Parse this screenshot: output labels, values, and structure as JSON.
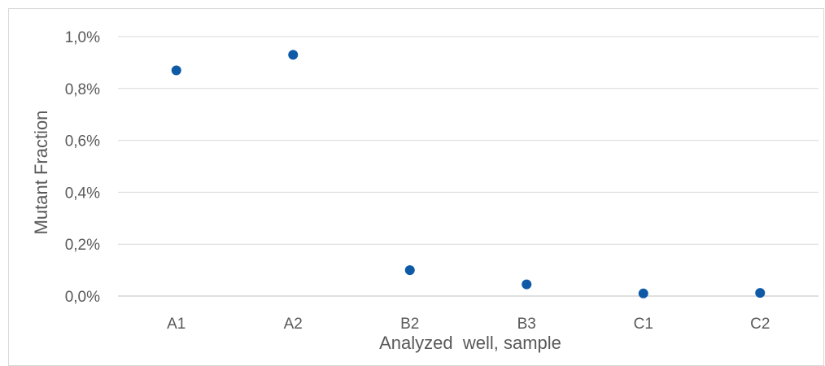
{
  "chart_data": {
    "type": "scatter",
    "categories": [
      "A1",
      "A2",
      "B2",
      "B3",
      "C1",
      "C2"
    ],
    "values": [
      0.0087,
      0.0093,
      0.001,
      0.00045,
      0.0001,
      0.00012
    ],
    "xlabel": "Analyzed  well, sample",
    "ylabel": "Mutant Fraction",
    "ylim": [
      0,
      0.01
    ],
    "yticks": [
      0,
      0.002,
      0.004,
      0.006,
      0.008,
      0.01
    ],
    "ytick_labels": [
      "0,0%",
      "0,2%",
      "0,4%",
      "0,6%",
      "0,8%",
      "1,0%"
    ],
    "grid": true,
    "legend": "none",
    "marker_color": "#0e5aa7",
    "grid_color": "#d9d9d9",
    "axis_color": "#bfbfbf",
    "text_color": "#595959"
  }
}
